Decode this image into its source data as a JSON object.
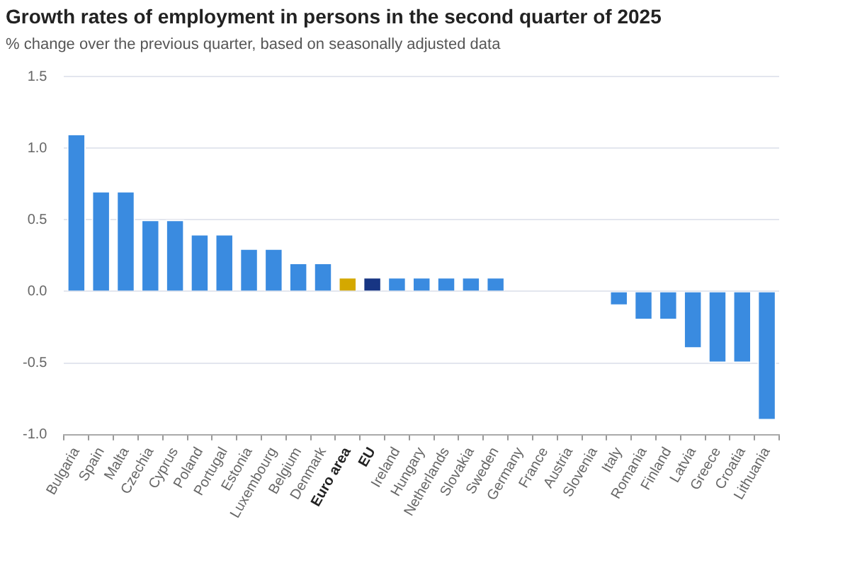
{
  "chart_data": {
    "type": "bar",
    "title": "Growth rates of employment in persons in the second quarter of 2025",
    "subtitle": "% change over the previous quarter, based on seasonally adjusted data",
    "categories": [
      "Bulgaria",
      "Spain",
      "Malta",
      "Czechia",
      "Cyprus",
      "Poland",
      "Portugal",
      "Estonia",
      "Luxembourg",
      "Belgium",
      "Denmark",
      "Euro area",
      "EU",
      "Ireland",
      "Hungary",
      "Netherlands",
      "Slovakia",
      "Sweden",
      "Germany",
      "France",
      "Austria",
      "Slovenia",
      "Italy",
      "Romania",
      "Finland",
      "Latvia",
      "Greece",
      "Croatia",
      "Lithuania"
    ],
    "values": [
      1.1,
      0.7,
      0.7,
      0.5,
      0.5,
      0.4,
      0.4,
      0.3,
      0.3,
      0.2,
      0.2,
      0.1,
      0.1,
      0.1,
      0.1,
      0.1,
      0.1,
      0.1,
      0,
      0,
      0,
      0,
      -0.1,
      -0.2,
      -0.2,
      -0.4,
      -0.5,
      -0.5,
      -0.9
    ],
    "colors": [
      "#3a8be0",
      "#3a8be0",
      "#3a8be0",
      "#3a8be0",
      "#3a8be0",
      "#3a8be0",
      "#3a8be0",
      "#3a8be0",
      "#3a8be0",
      "#3a8be0",
      "#3a8be0",
      "#d4a800",
      "#173583",
      "#3a8be0",
      "#3a8be0",
      "#3a8be0",
      "#3a8be0",
      "#3a8be0",
      "#3a8be0",
      "#3a8be0",
      "#3a8be0",
      "#3a8be0",
      "#3a8be0",
      "#3a8be0",
      "#3a8be0",
      "#3a8be0",
      "#3a8be0",
      "#3a8be0",
      "#3a8be0"
    ],
    "ylim": [
      -1.0,
      1.5
    ],
    "yticks": [
      {
        "value": -1.0,
        "label": "-1.0"
      },
      {
        "value": -0.5,
        "label": "-0.5"
      },
      {
        "value": 0,
        "label": "0.0"
      },
      {
        "value": 0.5,
        "label": "0.5"
      },
      {
        "value": 1.0,
        "label": "1.0"
      },
      {
        "value": 1.5,
        "label": "1.5"
      }
    ],
    "grid": "y",
    "legend": false
  }
}
